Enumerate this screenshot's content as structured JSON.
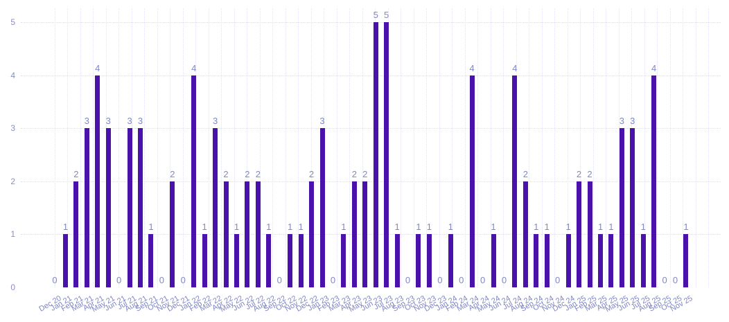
{
  "chart_data": {
    "type": "bar",
    "title": "",
    "xlabel": "",
    "ylabel": "",
    "ylim": [
      0,
      5
    ],
    "y_ticks": [
      0,
      1,
      2,
      3,
      4,
      5
    ],
    "grid": true,
    "legend": false,
    "bar_color": "#4b12ab",
    "value_label_color": "#8187c4",
    "axis_label_color": "#7d84c4",
    "grid_color": "#e2e2f2",
    "background_color": "#ffffff",
    "categories": [
      "Dec 20",
      "Jan 21",
      "Feb 21",
      "Mar 21",
      "Apr 21",
      "May 21",
      "Jun 21",
      "Jul 21",
      "Aug 21",
      "Sep 21",
      "Oct 21",
      "Nov 21",
      "Dec 21",
      "Jan 22",
      "Feb 22",
      "Mar 22",
      "Apr 22",
      "May 22",
      "Jun 22",
      "Jul 22",
      "Aug 22",
      "Sep 22",
      "Oct 22",
      "Nov 22",
      "Dec 22",
      "Jan 23",
      "Feb 23",
      "Mar 23",
      "Apr 23",
      "May 23",
      "Jun 23",
      "Jul 23",
      "Aug 23",
      "Sep 23",
      "Oct 23",
      "Nov 23",
      "Dec 23",
      "Jan 24",
      "Feb 24",
      "Mar 24",
      "Apr 24",
      "May 24",
      "Jun 24",
      "Jul 24",
      "Aug 24",
      "Sep 24",
      "Oct 24",
      "Nov 24",
      "Dec 24",
      "Jan 25",
      "Feb 25",
      "Mar 25",
      "Apr 25",
      "May 25",
      "Jun 25",
      "Jul 25",
      "Aug 25",
      "Sep 25",
      "Oct 25",
      "Nov 25"
    ],
    "values": [
      0,
      1,
      2,
      3,
      4,
      3,
      0,
      3,
      3,
      1,
      0,
      2,
      0,
      4,
      1,
      3,
      2,
      1,
      2,
      2,
      1,
      0,
      1,
      1,
      2,
      3,
      0,
      1,
      2,
      2,
      5,
      5,
      1,
      0,
      1,
      1,
      0,
      1,
      0,
      4,
      0,
      1,
      0,
      4,
      2,
      1,
      1,
      0,
      1,
      2,
      2,
      1,
      1,
      3,
      3,
      1,
      4,
      0,
      0,
      1
    ]
  }
}
